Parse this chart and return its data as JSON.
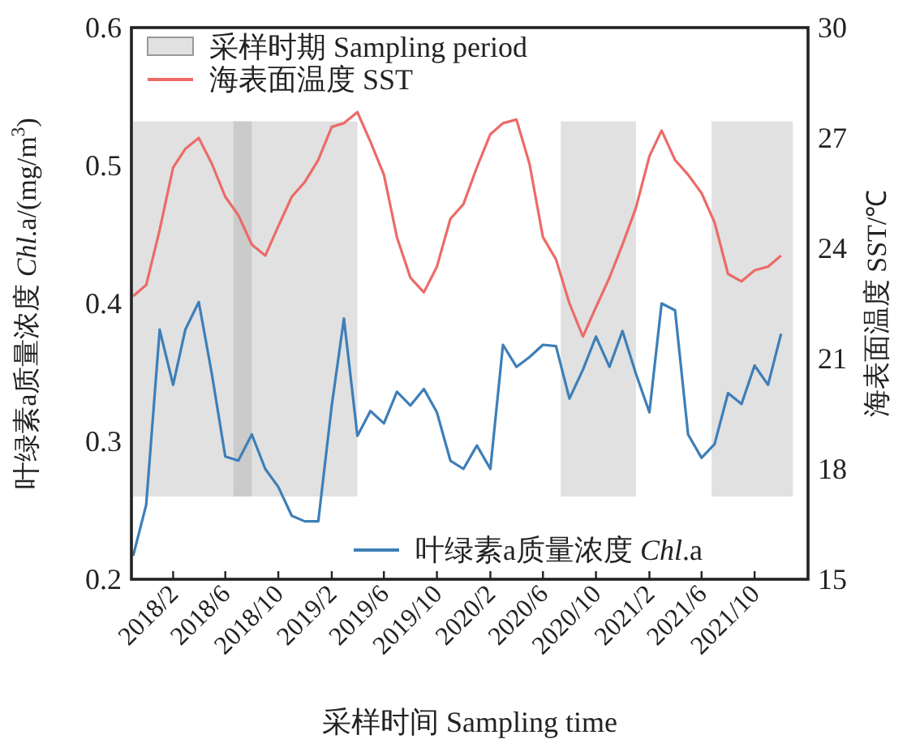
{
  "chart_data": {
    "type": "line",
    "xlabel": "采样时间 Sampling time",
    "ylabel": "叶绿素a质量浓度 *Chl*.a/(mg/m$^{3}$)",
    "y2label": "海表面温度 SST/℃",
    "x": [
      "2017-11",
      "2017-12",
      "2018-01",
      "2018-02",
      "2018-03",
      "2018-04",
      "2018-05",
      "2018-06",
      "2018-07",
      "2018-08",
      "2018-09",
      "2018-10",
      "2018-11",
      "2018-12",
      "2019-01",
      "2019-02",
      "2019-03",
      "2019-04",
      "2019-05",
      "2019-06",
      "2019-07",
      "2019-08",
      "2019-09",
      "2019-10",
      "2019-11",
      "2019-12",
      "2020-01",
      "2020-02",
      "2020-03",
      "2020-04",
      "2020-05",
      "2020-06",
      "2020-07",
      "2020-08",
      "2020-09",
      "2020-10",
      "2020-11",
      "2020-12",
      "2021-01",
      "2021-02",
      "2021-03",
      "2021-04",
      "2021-05",
      "2021-06",
      "2021-07",
      "2021-08",
      "2021-09",
      "2021-10",
      "2021-11",
      "2021-12"
    ],
    "series": [
      {
        "name": "海表面温度 SST",
        "color": "#ec6b68",
        "axis": "y2",
        "values": [
          22.7,
          23.0,
          24.5,
          26.2,
          26.7,
          27.0,
          26.3,
          25.4,
          24.9,
          24.1,
          23.8,
          24.6,
          25.4,
          25.8,
          26.4,
          27.3,
          27.4,
          27.7,
          26.9,
          26.0,
          24.3,
          23.2,
          22.8,
          23.5,
          24.8,
          25.2,
          26.2,
          27.1,
          27.4,
          27.5,
          26.3,
          24.3,
          23.7,
          22.5,
          21.6,
          22.4,
          23.2,
          24.1,
          25.1,
          26.5,
          27.2,
          26.4,
          26.0,
          25.5,
          24.7,
          23.3,
          23.1,
          23.4,
          23.5,
          23.8
        ]
      },
      {
        "name": "叶绿素a质量浓度 *Chl*.a",
        "color": "#3d7fb8",
        "axis": "y",
        "values": [
          0.217,
          0.254,
          0.381,
          0.341,
          0.381,
          0.401,
          0.349,
          0.289,
          0.286,
          0.305,
          0.28,
          0.267,
          0.246,
          0.242,
          0.242,
          0.326,
          0.389,
          0.304,
          0.322,
          0.313,
          0.336,
          0.326,
          0.338,
          0.321,
          0.286,
          0.28,
          0.297,
          0.28,
          0.37,
          0.354,
          0.361,
          0.37,
          0.369,
          0.331,
          0.352,
          0.376,
          0.354,
          0.38,
          0.349,
          0.321,
          0.4,
          0.395,
          0.305,
          0.288,
          0.298,
          0.335,
          0.327,
          0.355,
          0.341,
          0.378
        ]
      }
    ],
    "bands": [
      {
        "axis": "x",
        "from": "2017-11",
        "to": "2019-04",
        "label": "采样时期 Sampling period",
        "color": "#e1e1e1"
      },
      {
        "axis": "x",
        "from": "2018-06-20",
        "to": "2018-08",
        "color": "#cbcbcb"
      },
      {
        "axis": "x",
        "from": "2020-07-12",
        "to": "2021-01",
        "color": "#e1e1e1"
      },
      {
        "axis": "x",
        "from": "2021-06-24",
        "to": "2021-12-28",
        "color": "#e1e1e1"
      }
    ],
    "xlim": [
      "2017-10-28",
      "2022-02"
    ],
    "xticks": [
      {
        "value": "2018-02",
        "label": "2018/2"
      },
      {
        "value": "2018-06",
        "label": "2018/6"
      },
      {
        "value": "2018-10",
        "label": "2018/10"
      },
      {
        "value": "2019-02",
        "label": "2019/2"
      },
      {
        "value": "2019-06",
        "label": "2019/6"
      },
      {
        "value": "2019-10",
        "label": "2019/10"
      },
      {
        "value": "2020-02",
        "label": "2020/2"
      },
      {
        "value": "2020-06",
        "label": "2020/6"
      },
      {
        "value": "2020-10",
        "label": "2020/10"
      },
      {
        "value": "2021-02",
        "label": "2021/2"
      },
      {
        "value": "2021-06",
        "label": "2021/6"
      },
      {
        "value": "2021-10",
        "label": "2021/10"
      }
    ],
    "ylim": [
      0.2,
      0.6
    ],
    "yticks": [
      0.2,
      0.3,
      0.4,
      0.5,
      0.6
    ],
    "y2lim": [
      15,
      30
    ],
    "y2ticks": [
      15,
      18,
      21,
      24,
      27,
      30
    ],
    "legend": "top left",
    "marker": "none",
    "line_style": "solid"
  }
}
